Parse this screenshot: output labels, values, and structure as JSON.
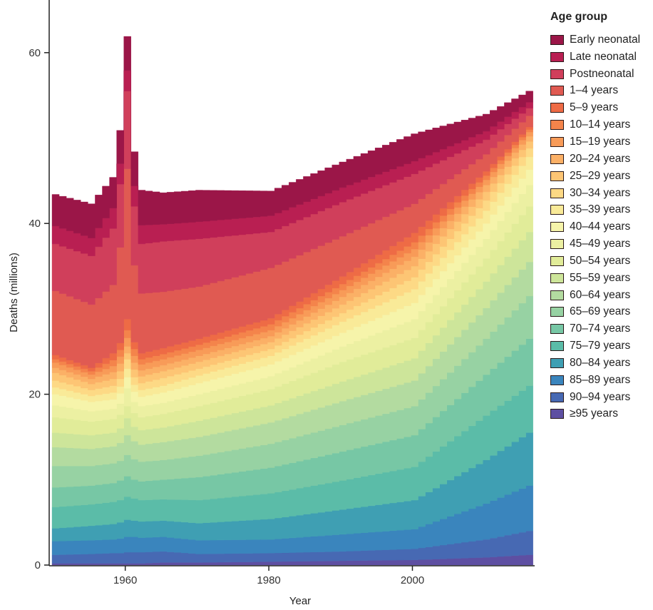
{
  "chart_data": {
    "type": "area",
    "stacked": true,
    "title": "",
    "xlabel": "Year",
    "ylabel": "Deaths (millions)",
    "xlim": [
      1950,
      2016
    ],
    "ylim": [
      0,
      65
    ],
    "xticks": [
      1960,
      1980,
      2000
    ],
    "yticks": [
      0,
      20,
      40,
      60
    ],
    "grid": false,
    "legend_title": "Age group",
    "legend_position": "right",
    "x": [
      1950,
      1955,
      1958,
      1959,
      1960,
      1961,
      1962,
      1965,
      1970,
      1980,
      1990,
      2000,
      2010,
      2016
    ],
    "series": [
      {
        "name": "Early neonatal",
        "color": "#9b1648",
        "values": [
          3.7,
          4.0,
          3.6,
          3.9,
          4.0,
          4.0,
          4.1,
          3.7,
          3.7,
          2.9,
          3.0,
          3.2,
          2.0,
          1.3
        ]
      },
      {
        "name": "Late neonatal",
        "color": "#b91f52",
        "values": [
          2.1,
          2.1,
          2.4,
          2.4,
          2.4,
          2.4,
          2.2,
          2.0,
          2.0,
          1.9,
          1.7,
          1.5,
          1.0,
          0.7
        ]
      },
      {
        "name": "Postneonatal",
        "color": "#d03f5b",
        "values": [
          5.5,
          5.7,
          6.6,
          7.4,
          9.1,
          6.9,
          5.8,
          5.9,
          5.6,
          4.2,
          4.0,
          3.5,
          1.7,
          0.9
        ]
      },
      {
        "name": "1–4 years",
        "color": "#e05a52",
        "values": [
          7.5,
          7.4,
          8.0,
          11.2,
          17.6,
          9.0,
          7.0,
          6.6,
          6.1,
          5.9,
          4.7,
          3.4,
          2.0,
          1.3
        ]
      },
      {
        "name": "5–9 years",
        "color": "#ee6b45",
        "values": [
          0.5,
          0.4,
          0.8,
          0.8,
          1.3,
          0.8,
          0.7,
          0.7,
          0.7,
          0.7,
          0.9,
          1.1,
          0.5,
          0.3
        ]
      },
      {
        "name": "10–14 years",
        "color": "#f4844b",
        "values": [
          0.4,
          0.4,
          0.7,
          0.8,
          0.9,
          0.8,
          0.6,
          0.6,
          0.6,
          0.7,
          0.7,
          0.8,
          0.5,
          0.3
        ]
      },
      {
        "name": "15–19 years",
        "color": "#f89b58",
        "values": [
          0.6,
          0.5,
          0.7,
          0.8,
          1.0,
          0.8,
          0.7,
          0.7,
          0.7,
          0.7,
          0.8,
          0.9,
          0.6,
          0.5
        ]
      },
      {
        "name": "20–24 years",
        "color": "#fbb066",
        "values": [
          0.6,
          0.6,
          0.8,
          0.9,
          0.8,
          0.8,
          0.7,
          0.7,
          0.7,
          0.7,
          0.9,
          1.1,
          0.8,
          0.6
        ]
      },
      {
        "name": "25–29 years",
        "color": "#fdc574",
        "values": [
          0.9,
          0.7,
          0.8,
          0.9,
          0.7,
          0.9,
          0.8,
          0.8,
          0.8,
          0.8,
          1.0,
          1.3,
          1.0,
          0.8
        ]
      },
      {
        "name": "30–34 years",
        "color": "#fdd985",
        "values": [
          0.8,
          0.7,
          0.8,
          0.9,
          1.1,
          0.9,
          0.8,
          0.9,
          0.8,
          0.8,
          1.0,
          1.4,
          1.2,
          1.0
        ]
      },
      {
        "name": "35–39 years",
        "color": "#f9ea98",
        "values": [
          0.8,
          0.7,
          0.8,
          0.8,
          1.0,
          0.8,
          0.8,
          0.8,
          0.9,
          1.0,
          1.3,
          1.6,
          1.5,
          1.5
        ]
      },
      {
        "name": "40–44 years",
        "color": "#f6f4aa",
        "values": [
          1.3,
          1.1,
          1.1,
          1.2,
          1.3,
          1.2,
          1.1,
          1.2,
          1.3,
          1.4,
          1.6,
          1.9,
          1.8,
          1.8
        ]
      },
      {
        "name": "45–49 years",
        "color": "#ecf0a2",
        "values": [
          1.4,
          1.2,
          1.2,
          1.3,
          2.1,
          1.3,
          1.3,
          1.3,
          1.4,
          1.5,
          1.8,
          2.2,
          2.3,
          2.5
        ]
      },
      {
        "name": "50–54 years",
        "color": "#e1ec99",
        "values": [
          1.8,
          1.6,
          1.6,
          1.6,
          1.4,
          1.6,
          1.5,
          1.6,
          1.7,
          1.9,
          2.3,
          2.4,
          2.7,
          3.0
        ]
      },
      {
        "name": "55–59 years",
        "color": "#cde59a",
        "values": [
          1.7,
          1.6,
          1.6,
          1.7,
          2.0,
          1.7,
          1.7,
          1.7,
          1.9,
          2.0,
          2.3,
          2.6,
          3.1,
          3.5
        ]
      },
      {
        "name": "60–64 years",
        "color": "#b3dba0",
        "values": [
          2.2,
          2.0,
          2.0,
          2.1,
          2.3,
          2.1,
          2.0,
          2.1,
          2.2,
          2.5,
          2.8,
          3.0,
          3.6,
          4.0
        ]
      },
      {
        "name": "65–69 years",
        "color": "#97d2a3",
        "values": [
          2.5,
          2.3,
          2.3,
          2.3,
          2.5,
          2.4,
          2.3,
          2.3,
          2.5,
          2.8,
          3.1,
          3.4,
          4.2,
          5.0
        ]
      },
      {
        "name": "70–74 years",
        "color": "#77c7a5",
        "values": [
          2.3,
          2.2,
          2.2,
          2.3,
          2.4,
          2.2,
          2.2,
          2.3,
          2.7,
          3.0,
          3.4,
          3.7,
          4.8,
          5.5
        ]
      },
      {
        "name": "75–79 years",
        "color": "#5bbca8",
        "values": [
          2.5,
          2.5,
          2.6,
          2.6,
          2.7,
          2.6,
          2.5,
          2.5,
          2.7,
          3.0,
          3.4,
          3.9,
          5.2,
          5.5
        ]
      },
      {
        "name": "80–84 years",
        "color": "#3f9fb3",
        "values": [
          1.5,
          1.7,
          1.8,
          1.9,
          2.0,
          1.9,
          1.9,
          1.9,
          2.0,
          2.4,
          2.9,
          3.4,
          5.1,
          6.2
        ]
      },
      {
        "name": "85–89 years",
        "color": "#3a85bd",
        "values": [
          1.6,
          1.6,
          1.6,
          1.7,
          1.8,
          1.8,
          1.7,
          1.7,
          1.6,
          1.6,
          2.0,
          2.3,
          4.2,
          5.3
        ]
      },
      {
        "name": "90–94 years",
        "color": "#4769b3",
        "values": [
          1.0,
          1.1,
          1.2,
          1.2,
          1.3,
          1.3,
          1.3,
          1.3,
          1.0,
          1.0,
          1.1,
          1.3,
          2.1,
          2.8
        ]
      },
      {
        "name": "≥95 years",
        "color": "#5e4fa2",
        "values": [
          0.2,
          0.2,
          0.2,
          0.2,
          0.2,
          0.2,
          0.2,
          0.3,
          0.3,
          0.4,
          0.5,
          0.6,
          0.9,
          1.2
        ]
      }
    ]
  }
}
